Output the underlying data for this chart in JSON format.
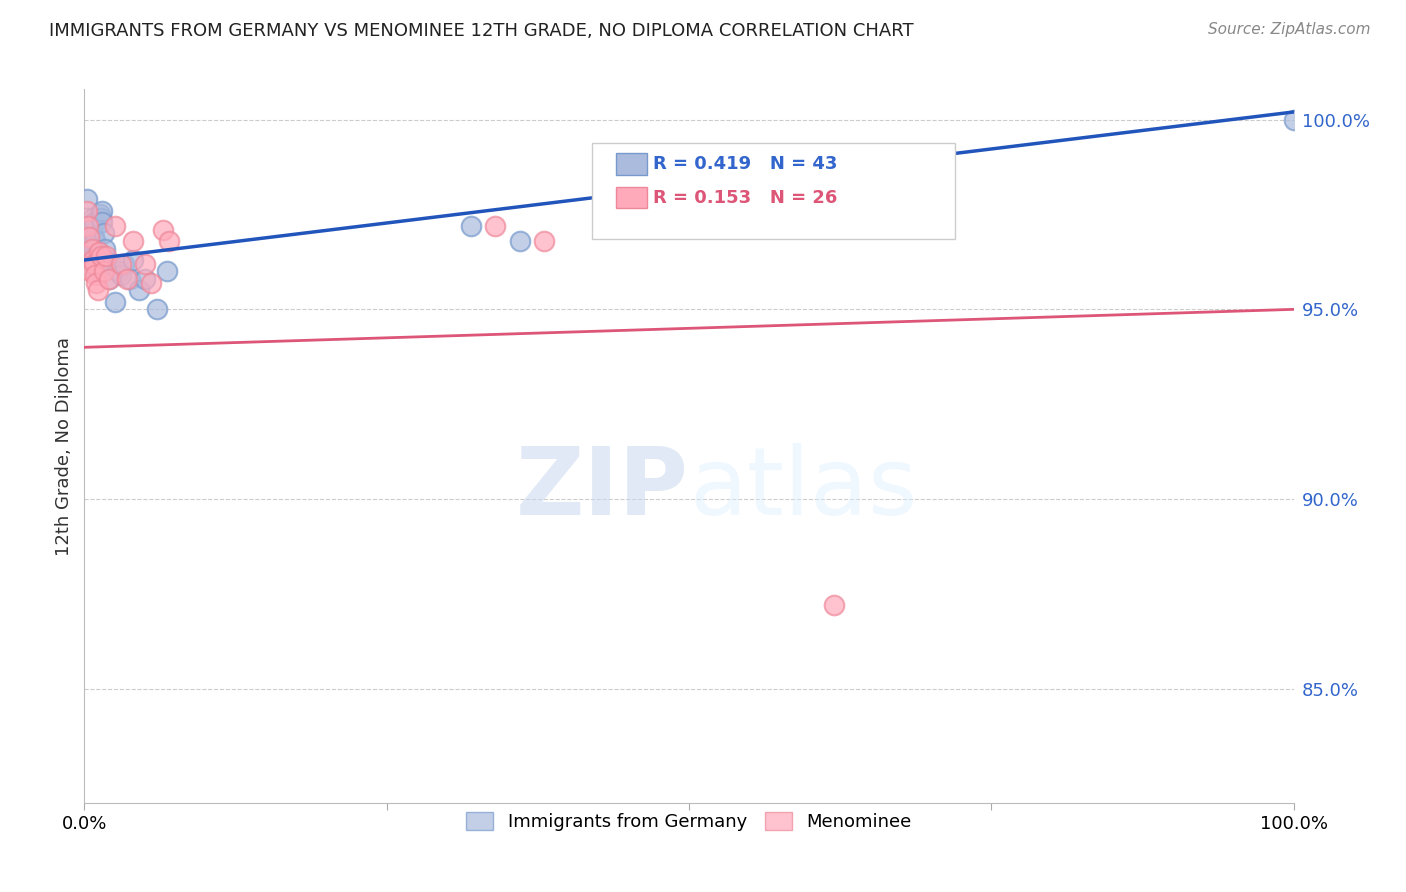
{
  "title": "IMMIGRANTS FROM GERMANY VS MENOMINEE 12TH GRADE, NO DIPLOMA CORRELATION CHART",
  "source": "Source: ZipAtlas.com",
  "ylabel": "12th Grade, No Diploma",
  "legend_label1": "Immigrants from Germany",
  "legend_label2": "Menominee",
  "R1": 0.419,
  "N1": 43,
  "R2": 0.153,
  "N2": 26,
  "blue_color": "#aabbdd",
  "blue_edge_color": "#7799cc",
  "pink_color": "#ffaabb",
  "pink_edge_color": "#ee8899",
  "blue_line_color": "#2255bb",
  "pink_line_color": "#dd5577",
  "blue_x": [
    0.002,
    0.003,
    0.003,
    0.004,
    0.004,
    0.005,
    0.005,
    0.006,
    0.006,
    0.007,
    0.007,
    0.008,
    0.008,
    0.008,
    0.009,
    0.009,
    0.01,
    0.01,
    0.011,
    0.012,
    0.012,
    0.013,
    0.014,
    0.015,
    0.015,
    0.016,
    0.017,
    0.018,
    0.02,
    0.022,
    0.025,
    0.028,
    0.03,
    0.033,
    0.038,
    0.04,
    0.045,
    0.05,
    0.06,
    0.068,
    0.32,
    0.36,
    1.0
  ],
  "blue_y": [
    0.979,
    0.971,
    0.969,
    0.97,
    0.968,
    0.966,
    0.968,
    0.963,
    0.965,
    0.974,
    0.972,
    0.973,
    0.969,
    0.966,
    0.964,
    0.968,
    0.963,
    0.96,
    0.96,
    0.965,
    0.962,
    0.975,
    0.974,
    0.976,
    0.973,
    0.97,
    0.966,
    0.963,
    0.958,
    0.962,
    0.952,
    0.96,
    0.959,
    0.962,
    0.958,
    0.963,
    0.955,
    0.958,
    0.95,
    0.96,
    0.972,
    0.968,
    1.0
  ],
  "pink_x": [
    0.002,
    0.003,
    0.004,
    0.005,
    0.006,
    0.007,
    0.008,
    0.009,
    0.01,
    0.011,
    0.012,
    0.014,
    0.016,
    0.018,
    0.02,
    0.025,
    0.03,
    0.035,
    0.04,
    0.05,
    0.055,
    0.065,
    0.07,
    0.34,
    0.38,
    0.62
  ],
  "pink_y": [
    0.976,
    0.972,
    0.969,
    0.96,
    0.966,
    0.963,
    0.962,
    0.959,
    0.957,
    0.955,
    0.965,
    0.964,
    0.96,
    0.964,
    0.958,
    0.972,
    0.962,
    0.958,
    0.968,
    0.962,
    0.957,
    0.971,
    0.968,
    0.972,
    0.968,
    0.872
  ],
  "xmin": 0.0,
  "xmax": 1.0,
  "ymin": 0.82,
  "ymax": 1.008,
  "yticks": [
    0.85,
    0.9,
    0.95,
    1.0
  ],
  "ytick_labels": [
    "85.0%",
    "90.0%",
    "95.0%",
    "100.0%"
  ],
  "grid_color": "#cccccc",
  "watermark_zip": "ZIP",
  "watermark_atlas": "atlas",
  "background_color": "#ffffff"
}
